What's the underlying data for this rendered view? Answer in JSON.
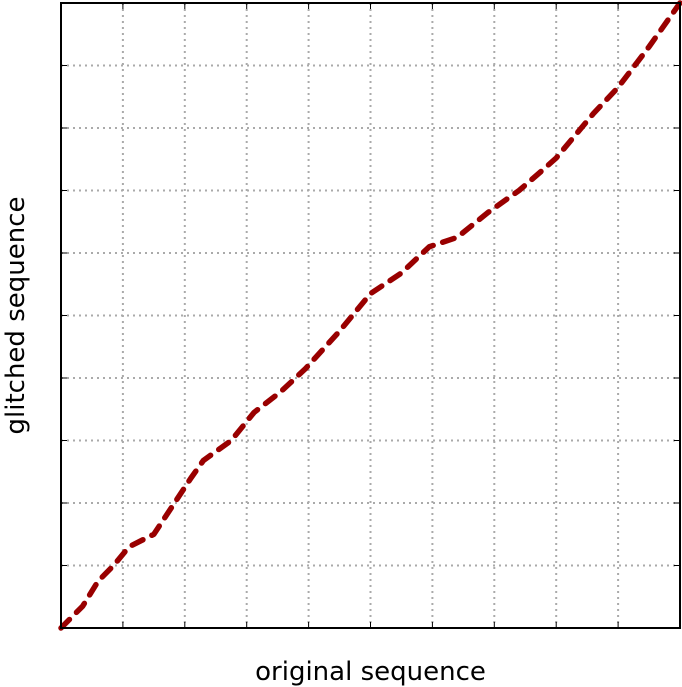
{
  "chart_data": {
    "type": "line",
    "title": "",
    "xlabel": "original sequence",
    "ylabel": "glitched sequence",
    "xlim": [
      0,
      1
    ],
    "ylim": [
      0,
      1
    ],
    "grid": true,
    "grid_divisions": 10,
    "line_color": "#990000",
    "line_style": "dashed",
    "series": [
      {
        "name": "",
        "points": [
          [
            0.0,
            0.0
          ],
          [
            0.035,
            0.035
          ],
          [
            0.06,
            0.075
          ],
          [
            0.085,
            0.1
          ],
          [
            0.11,
            0.13
          ],
          [
            0.15,
            0.15
          ],
          [
            0.172,
            0.183
          ],
          [
            0.21,
            0.24
          ],
          [
            0.23,
            0.268
          ],
          [
            0.275,
            0.3
          ],
          [
            0.312,
            0.345
          ],
          [
            0.355,
            0.378
          ],
          [
            0.395,
            0.415
          ],
          [
            0.45,
            0.475
          ],
          [
            0.5,
            0.535
          ],
          [
            0.55,
            0.568
          ],
          [
            0.595,
            0.61
          ],
          [
            0.64,
            0.625
          ],
          [
            0.69,
            0.665
          ],
          [
            0.74,
            0.7
          ],
          [
            0.775,
            0.73
          ],
          [
            0.8,
            0.752
          ],
          [
            0.86,
            0.823
          ],
          [
            0.9,
            0.865
          ],
          [
            0.95,
            0.93
          ],
          [
            1.0,
            1.0
          ]
        ]
      }
    ]
  }
}
